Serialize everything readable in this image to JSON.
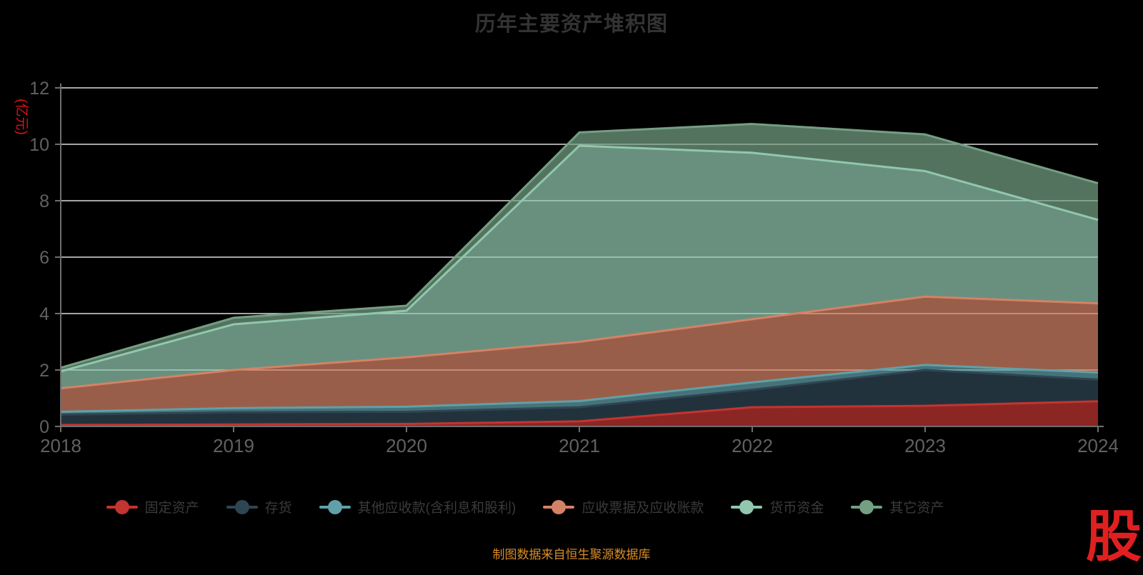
{
  "title": "历年主要资产堆积图",
  "y_axis_name": "(亿元)",
  "source_note": "制图数据来自恒生聚源数据库",
  "logo_text": "股",
  "colors": {
    "background": "#000000",
    "title_text": "#333333",
    "axis_label": "#616161",
    "axis_line": "#6e6e6e",
    "gridline": "#dcdcdc",
    "unit_label": "#e01212",
    "legend_text": "#3a3a3a",
    "source_text": "#d98d28",
    "logo_red": "#e02020"
  },
  "chart_data": {
    "type": "area",
    "stacked": true,
    "title": "历年主要资产堆积图",
    "ylabel": "(亿元)",
    "xlabel": "",
    "grid": true,
    "legend_position": "bottom",
    "ylim": [
      0,
      12
    ],
    "y_ticks": [
      0,
      2,
      4,
      6,
      8,
      10,
      12
    ],
    "x": [
      "2018",
      "2019",
      "2020",
      "2021",
      "2022",
      "2023",
      "2024"
    ],
    "series": [
      {
        "name": "固定资产",
        "color": "#c23531",
        "values": [
          0.05,
          0.07,
          0.09,
          0.18,
          0.68,
          0.73,
          0.89
        ]
      },
      {
        "name": "存货",
        "color": "#2f4554",
        "values": [
          0.37,
          0.43,
          0.43,
          0.5,
          0.62,
          1.27,
          0.77
        ]
      },
      {
        "name": "其他应收款(含利息和股利)",
        "color": "#61a0a8",
        "values": [
          0.1,
          0.15,
          0.18,
          0.22,
          0.26,
          0.18,
          0.25
        ]
      },
      {
        "name": "应收票据及应收账款",
        "color": "#d48265",
        "values": [
          0.83,
          1.35,
          1.75,
          2.1,
          2.24,
          2.42,
          2.45
        ]
      },
      {
        "name": "货币资金",
        "color": "#91c7ae",
        "values": [
          0.6,
          1.62,
          1.65,
          6.95,
          5.9,
          4.45,
          2.96
        ]
      },
      {
        "name": "其它资产",
        "color": "#749f83",
        "values": [
          0.13,
          0.23,
          0.18,
          0.47,
          1.02,
          1.3,
          1.3
        ]
      }
    ]
  }
}
